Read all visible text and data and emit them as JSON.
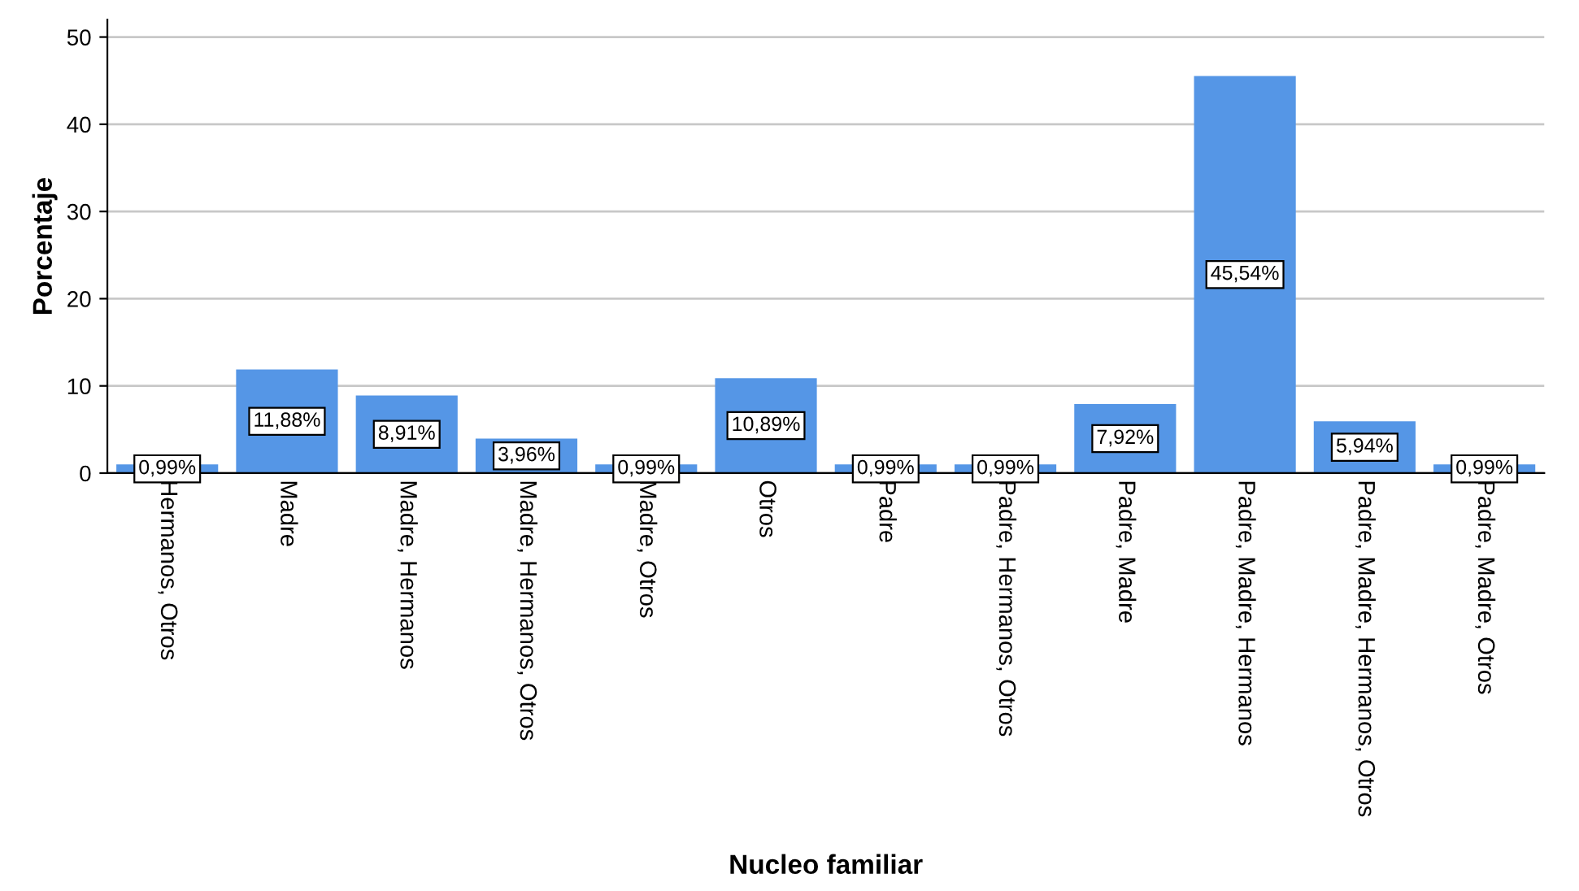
{
  "chart_data": {
    "type": "bar",
    "xlabel": "Nucleo familiar",
    "ylabel": "Porcentaje",
    "categories": [
      "Hermanos, Otros",
      "Madre",
      "Madre, Hermanos",
      "Madre, Hermanos, Otros",
      "Madre, Otros",
      "Otros",
      "Padre",
      "Padre, Hermanos, Otros",
      "Padre, Madre",
      "Padre, Madre, Hermanos",
      "Padre, Madre, Hermanos, Otros",
      "Padre, Madre, Otros"
    ],
    "values": [
      0.99,
      11.88,
      8.91,
      3.96,
      0.99,
      10.89,
      0.99,
      0.99,
      7.92,
      45.54,
      5.94,
      0.99
    ],
    "value_labels": [
      "0,99%",
      "11,88%",
      "8,91%",
      "3,96%",
      "0,99%",
      "10,89%",
      "0,99%",
      "0,99%",
      "7,92%",
      "45,54%",
      "5,94%",
      "0,99%"
    ],
    "color": "#5596e6",
    "ylim": [
      0,
      52
    ],
    "yticks": [
      0,
      10,
      20,
      30,
      40,
      50
    ],
    "grid": "y",
    "legend": false
  }
}
